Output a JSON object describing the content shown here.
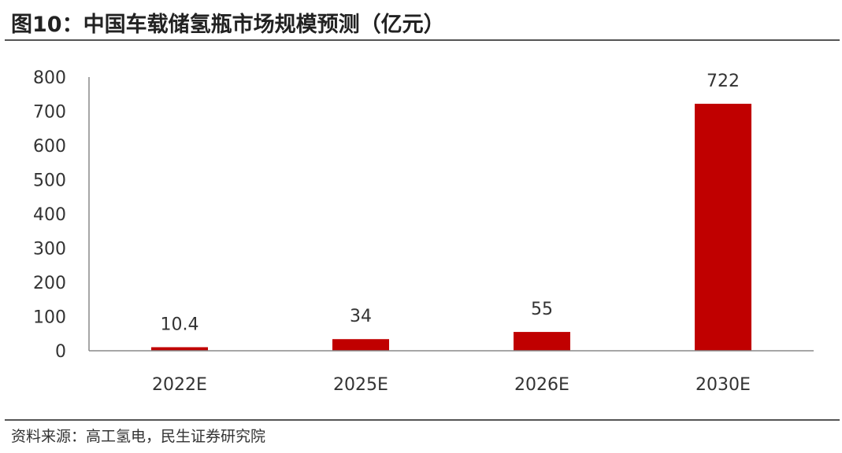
{
  "header": {
    "title": "图10：中国车载储氢瓶市场规模预测（亿元）"
  },
  "footer": {
    "source": "资料来源：高工氢电，民生证券研究院"
  },
  "chart_data": {
    "type": "bar",
    "title": "图10：中国车载储氢瓶市场规模预测（亿元）",
    "categories": [
      "2022E",
      "2025E",
      "2026E",
      "2030E"
    ],
    "values": [
      10.4,
      34,
      55,
      722
    ],
    "data_labels": [
      "10.4",
      "34",
      "55",
      "722"
    ],
    "ylim": [
      0,
      800
    ],
    "yticks": [
      0,
      100,
      200,
      300,
      400,
      500,
      600,
      700,
      800
    ],
    "xlabel": "",
    "ylabel": "",
    "grid": false,
    "legend": "none",
    "bar_color": "#C00000"
  }
}
